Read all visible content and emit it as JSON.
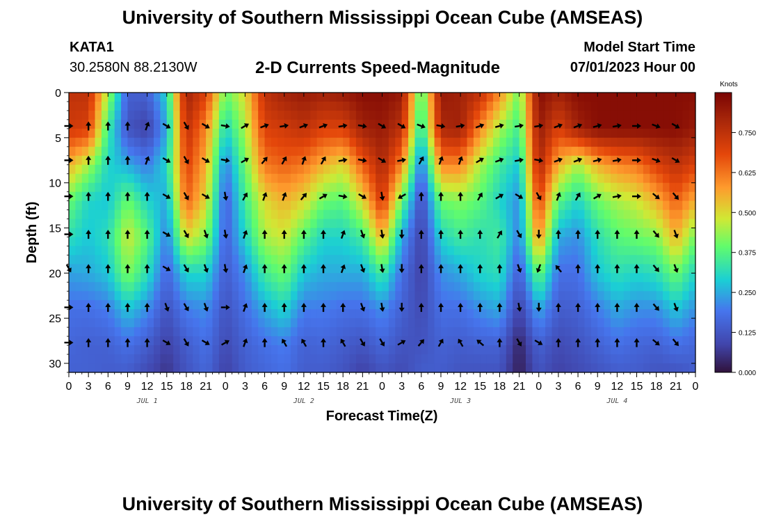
{
  "header": {
    "title": "University of Southern Mississippi Ocean Cube (AMSEAS)",
    "station": "KATA1",
    "coords": "30.2580N  88.2130W",
    "subtitle": "2-D Currents Speed-Magnitude",
    "model_start_label": "Model Start Time",
    "model_start_value": "07/01/2023 Hour 00"
  },
  "footer": {
    "title": "University of Southern Mississippi Ocean Cube (AMSEAS)"
  },
  "chart_data": {
    "type": "heatmap",
    "title": "2-D Currents Speed-Magnitude",
    "xlabel": "Forecast Time(Z)",
    "ylabel": "Depth (ft)",
    "xlim": [
      0,
      96
    ],
    "ylim": [
      0,
      31
    ],
    "x_ticks": [
      0,
      3,
      6,
      9,
      12,
      15,
      18,
      21,
      24,
      27,
      30,
      33,
      36,
      39,
      42,
      45,
      48,
      51,
      54,
      57,
      60,
      63,
      66,
      69,
      72,
      75,
      78,
      81,
      84,
      87,
      90,
      93,
      96
    ],
    "x_tick_labels": [
      "0",
      "3",
      "6",
      "9",
      "12",
      "15",
      "18",
      "21",
      "0",
      "3",
      "6",
      "9",
      "12",
      "15",
      "18",
      "21",
      "0",
      "3",
      "6",
      "9",
      "12",
      "15",
      "18",
      "21",
      "0",
      "3",
      "6",
      "9",
      "12",
      "15",
      "18",
      "21",
      "0"
    ],
    "day_labels": [
      {
        "hour": 12,
        "label": "JUL 1"
      },
      {
        "hour": 36,
        "label": "JUL 2"
      },
      {
        "hour": 60,
        "label": "JUL 3"
      },
      {
        "hour": 84,
        "label": "JUL 4"
      }
    ],
    "y_ticks": [
      0,
      5,
      10,
      15,
      20,
      25,
      30
    ],
    "y_tick_labels": [
      "0",
      "5",
      "10",
      "15",
      "20",
      "25",
      "30"
    ],
    "colorbar": {
      "label": "Knots",
      "min": 0.0,
      "max": 0.875,
      "ticks": [
        0.0,
        0.125,
        0.25,
        0.375,
        0.5,
        0.625,
        0.75
      ],
      "tick_labels": [
        "0.000",
        "0.125",
        "0.250",
        "0.375",
        "0.500",
        "0.625",
        "0.750"
      ]
    },
    "vector_depths": [
      3.7,
      7.5,
      11.5,
      15.7,
      19.5,
      23.8,
      27.7
    ],
    "vector_hours": [
      0,
      3,
      6,
      9,
      12,
      15,
      18,
      21,
      24,
      27,
      30,
      33,
      36,
      39,
      42,
      45,
      48,
      51,
      54,
      57,
      60,
      63,
      66,
      69,
      72,
      75,
      78,
      81,
      84,
      87,
      90,
      93
    ],
    "speed_profiles": [
      {
        "hour": 0,
        "values": [
          0.75,
          0.72,
          0.55,
          0.4,
          0.32,
          0.24,
          0.18,
          0.16,
          0.15
        ]
      },
      {
        "hour": 3,
        "values": [
          0.75,
          0.7,
          0.45,
          0.3,
          0.28,
          0.25,
          0.18,
          0.15,
          0.15
        ]
      },
      {
        "hour": 6,
        "values": [
          0.45,
          0.35,
          0.3,
          0.28,
          0.32,
          0.28,
          0.2,
          0.15,
          0.14
        ]
      },
      {
        "hour": 9,
        "values": [
          0.15,
          0.12,
          0.25,
          0.4,
          0.48,
          0.42,
          0.28,
          0.18,
          0.14
        ]
      },
      {
        "hour": 12,
        "values": [
          0.15,
          0.08,
          0.2,
          0.3,
          0.38,
          0.32,
          0.22,
          0.14,
          0.1
        ]
      },
      {
        "hour": 15,
        "values": [
          0.3,
          0.25,
          0.3,
          0.25,
          0.2,
          0.16,
          0.12,
          0.08,
          0.06
        ]
      },
      {
        "hour": 18,
        "values": [
          0.8,
          0.75,
          0.7,
          0.65,
          0.5,
          0.3,
          0.2,
          0.14,
          0.12
        ]
      },
      {
        "hour": 21,
        "values": [
          0.7,
          0.6,
          0.55,
          0.5,
          0.42,
          0.3,
          0.22,
          0.18,
          0.16
        ]
      },
      {
        "hour": 24,
        "values": [
          0.4,
          0.3,
          0.2,
          0.15,
          0.15,
          0.14,
          0.12,
          0.1,
          0.08
        ]
      },
      {
        "hour": 27,
        "values": [
          0.5,
          0.45,
          0.4,
          0.35,
          0.3,
          0.22,
          0.18,
          0.15,
          0.14
        ]
      },
      {
        "hour": 30,
        "values": [
          0.75,
          0.7,
          0.62,
          0.5,
          0.45,
          0.35,
          0.25,
          0.18,
          0.16
        ]
      },
      {
        "hour": 33,
        "values": [
          0.8,
          0.72,
          0.65,
          0.55,
          0.48,
          0.4,
          0.3,
          0.2,
          0.18
        ]
      },
      {
        "hour": 36,
        "values": [
          0.82,
          0.75,
          0.62,
          0.5,
          0.38,
          0.28,
          0.2,
          0.15,
          0.14
        ]
      },
      {
        "hour": 39,
        "values": [
          0.8,
          0.7,
          0.55,
          0.4,
          0.3,
          0.25,
          0.2,
          0.16,
          0.14
        ]
      },
      {
        "hour": 42,
        "values": [
          0.82,
          0.7,
          0.5,
          0.38,
          0.3,
          0.25,
          0.18,
          0.14,
          0.12
        ]
      },
      {
        "hour": 45,
        "values": [
          0.85,
          0.8,
          0.65,
          0.5,
          0.35,
          0.25,
          0.18,
          0.12,
          0.08
        ]
      },
      {
        "hour": 48,
        "values": [
          0.85,
          0.82,
          0.78,
          0.72,
          0.55,
          0.35,
          0.22,
          0.16,
          0.12
        ]
      },
      {
        "hour": 51,
        "values": [
          0.82,
          0.75,
          0.6,
          0.4,
          0.25,
          0.18,
          0.15,
          0.12,
          0.1
        ]
      },
      {
        "hour": 54,
        "values": [
          0.35,
          0.3,
          0.18,
          0.1,
          0.08,
          0.08,
          0.1,
          0.12,
          0.14
        ]
      },
      {
        "hour": 57,
        "values": [
          0.82,
          0.78,
          0.6,
          0.4,
          0.3,
          0.22,
          0.18,
          0.15,
          0.14
        ]
      },
      {
        "hour": 60,
        "values": [
          0.8,
          0.8,
          0.6,
          0.42,
          0.35,
          0.25,
          0.18,
          0.14,
          0.12
        ]
      },
      {
        "hour": 63,
        "values": [
          0.75,
          0.6,
          0.45,
          0.38,
          0.32,
          0.3,
          0.22,
          0.15,
          0.12
        ]
      },
      {
        "hour": 66,
        "values": [
          0.6,
          0.45,
          0.35,
          0.3,
          0.35,
          0.32,
          0.25,
          0.15,
          0.12
        ]
      },
      {
        "hour": 69,
        "values": [
          0.4,
          0.35,
          0.28,
          0.22,
          0.2,
          0.14,
          0.08,
          0.03,
          0.02
        ]
      },
      {
        "hour": 72,
        "values": [
          0.85,
          0.82,
          0.78,
          0.7,
          0.6,
          0.4,
          0.25,
          0.15,
          0.12
        ]
      },
      {
        "hour": 75,
        "values": [
          0.8,
          0.7,
          0.55,
          0.38,
          0.25,
          0.18,
          0.14,
          0.1,
          0.08
        ]
      },
      {
        "hour": 78,
        "values": [
          0.85,
          0.8,
          0.45,
          0.3,
          0.22,
          0.18,
          0.15,
          0.12,
          0.1
        ]
      },
      {
        "hour": 81,
        "values": [
          0.85,
          0.85,
          0.55,
          0.4,
          0.32,
          0.28,
          0.2,
          0.15,
          0.12
        ]
      },
      {
        "hour": 84,
        "values": [
          0.85,
          0.85,
          0.6,
          0.45,
          0.38,
          0.32,
          0.25,
          0.18,
          0.14
        ]
      },
      {
        "hour": 87,
        "values": [
          0.85,
          0.85,
          0.62,
          0.48,
          0.4,
          0.3,
          0.22,
          0.16,
          0.14
        ]
      },
      {
        "hour": 90,
        "values": [
          0.85,
          0.85,
          0.7,
          0.55,
          0.42,
          0.32,
          0.22,
          0.15,
          0.12
        ]
      },
      {
        "hour": 93,
        "values": [
          0.85,
          0.85,
          0.75,
          0.65,
          0.55,
          0.4,
          0.28,
          0.18,
          0.12
        ]
      },
      {
        "hour": 96,
        "values": [
          0.85,
          0.82,
          0.7,
          0.55,
          0.4,
          0.3,
          0.22,
          0.16,
          0.14
        ]
      }
    ],
    "profile_depths": [
      0,
      4,
      8,
      12,
      16,
      20,
      24,
      28,
      31
    ],
    "vector_directions_deg": [
      [
        90,
        0,
        0,
        0,
        20,
        120,
        150,
        120,
        100,
        60,
        70,
        80,
        70,
        70,
        80,
        100,
        120,
        120,
        110,
        100,
        80,
        70,
        75,
        80,
        80,
        70,
        70,
        75,
        80,
        90,
        110,
        120
      ],
      [
        90,
        0,
        0,
        0,
        20,
        120,
        150,
        120,
        100,
        60,
        40,
        30,
        20,
        30,
        80,
        100,
        120,
        80,
        30,
        20,
        20,
        60,
        70,
        80,
        100,
        70,
        70,
        75,
        80,
        90,
        110,
        120
      ],
      [
        90,
        0,
        0,
        0,
        0,
        120,
        150,
        120,
        170,
        30,
        20,
        20,
        40,
        60,
        100,
        120,
        170,
        240,
        0,
        0,
        0,
        30,
        60,
        120,
        150,
        20,
        30,
        60,
        80,
        90,
        130,
        140
      ],
      [
        90,
        0,
        0,
        0,
        0,
        120,
        150,
        160,
        170,
        20,
        0,
        0,
        0,
        0,
        20,
        160,
        170,
        180,
        0,
        0,
        0,
        0,
        30,
        150,
        180,
        0,
        0,
        0,
        0,
        0,
        140,
        160
      ],
      [
        150,
        0,
        0,
        0,
        0,
        120,
        150,
        160,
        170,
        20,
        0,
        0,
        0,
        0,
        20,
        160,
        170,
        180,
        0,
        0,
        0,
        0,
        0,
        160,
        200,
        320,
        0,
        0,
        0,
        0,
        140,
        160
      ],
      [
        90,
        0,
        0,
        0,
        0,
        160,
        150,
        160,
        90,
        20,
        0,
        0,
        0,
        0,
        0,
        160,
        170,
        180,
        0,
        0,
        0,
        0,
        0,
        170,
        180,
        0,
        0,
        0,
        0,
        0,
        140,
        160
      ],
      [
        90,
        0,
        0,
        0,
        0,
        120,
        150,
        120,
        60,
        20,
        0,
        330,
        330,
        0,
        330,
        150,
        150,
        60,
        40,
        30,
        330,
        310,
        0,
        150,
        120,
        0,
        0,
        0,
        0,
        0,
        130,
        140
      ]
    ]
  }
}
